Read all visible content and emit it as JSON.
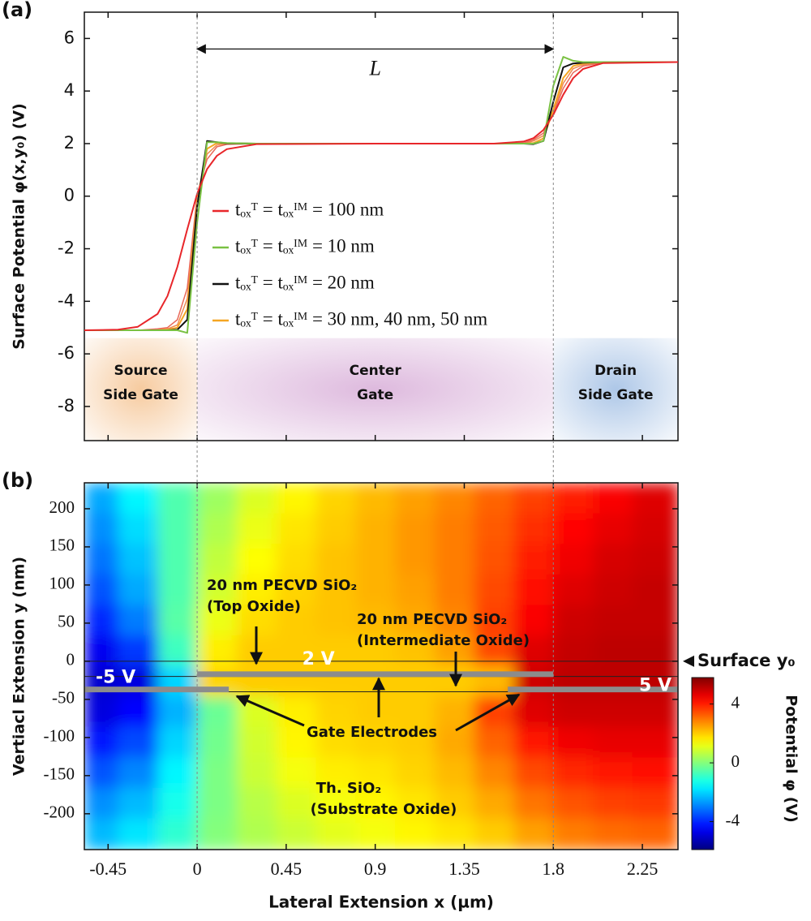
{
  "chart_data": [
    {
      "type": "line",
      "panel_label": "(a)",
      "ylabel": "Surface Potential φ(x,y₀) (V)",
      "x": [
        -0.57,
        -0.4,
        -0.3,
        -0.2,
        -0.15,
        -0.1,
        -0.05,
        0,
        0.05,
        0.1,
        0.15,
        0.3,
        0.9,
        1.5,
        1.65,
        1.7,
        1.75,
        1.8,
        1.85,
        1.9,
        1.95,
        2.05,
        2.43
      ],
      "xlim": [
        -0.57,
        2.43
      ],
      "xticks": [
        -0.45,
        0,
        0.45,
        0.9,
        1.35,
        1.8,
        2.25
      ],
      "ylim": [
        -9.3,
        7
      ],
      "yticks": [
        -8,
        -6,
        -4,
        -2,
        0,
        2,
        4,
        6
      ],
      "series": [
        {
          "name": "tₒₓᵀ = tₒₓᴵᴹ = 100 nm",
          "color": "#e8262a",
          "values": [
            -5.1,
            -5.08,
            -4.97,
            -4.48,
            -3.8,
            -2.69,
            -1.26,
            0.09,
            1.03,
            1.54,
            1.79,
            1.98,
            2,
            2,
            2.08,
            2.21,
            2.52,
            3.1,
            3.86,
            4.49,
            4.84,
            5.06,
            5.1
          ]
        },
        {
          "name": "tₒₓᵀ = tₒₓᴵᴹ = 10 nm",
          "color": "#7ac143",
          "values": [
            -5.1,
            -5.1,
            -5.1,
            -5.1,
            -5.1,
            -5.1,
            -5.2,
            -1,
            2.05,
            2.05,
            2.02,
            2,
            2,
            2,
            2,
            2,
            2.1,
            4.2,
            5.3,
            5.15,
            5.1,
            5.1,
            5.1
          ]
        },
        {
          "name": "tₒₓᵀ = tₒₓᴵᴹ = 20 nm",
          "color": "#111111",
          "values": [
            -5.1,
            -5.1,
            -5.1,
            -5.1,
            -5.1,
            -5.08,
            -4.7,
            -0.4,
            2.1,
            2.05,
            2.01,
            2,
            2,
            2,
            2,
            1.98,
            2.1,
            3.6,
            4.9,
            5.05,
            5.08,
            5.1,
            5.1
          ]
        },
        {
          "name": "tₒₓᵀ = tₒₓᴵᴹ = 30 nm, 40 nm, 50 nm",
          "color": "#f5a623",
          "values": [
            -5.1,
            -5.1,
            -5.1,
            -5.1,
            -5.08,
            -5,
            -4.3,
            -0.2,
            1.8,
            2.02,
            2.01,
            2,
            2,
            2,
            2,
            2.02,
            2.2,
            3.3,
            4.5,
            4.95,
            5.05,
            5.1,
            5.1
          ]
        },
        {
          "color": "#ef8a52",
          "values": [
            -5.1,
            -5.1,
            -5.1,
            -5.08,
            -5.05,
            -4.9,
            -3.9,
            0,
            1.6,
            1.95,
            2,
            2,
            2,
            2,
            2,
            2.1,
            2.3,
            3.2,
            4.3,
            4.85,
            5,
            5.1,
            5.1
          ]
        },
        {
          "color": "#e9695a",
          "values": [
            -5.1,
            -5.1,
            -5.1,
            -5.05,
            -5,
            -4.7,
            -3.5,
            0.05,
            1.4,
            1.88,
            1.97,
            2,
            2,
            2,
            2.02,
            2.15,
            2.4,
            3.15,
            4.1,
            4.7,
            4.95,
            5.08,
            5.1
          ]
        }
      ],
      "legend": "center",
      "gate_edges": [
        0,
        1.8
      ],
      "dimension": {
        "label": "L",
        "y": 5.6
      },
      "regions": [
        {
          "label": [
            "Source",
            "Side Gate"
          ],
          "x": [
            -0.57,
            0
          ],
          "y": [
            -9.3,
            -5.4
          ],
          "color": "#f6c89a"
        },
        {
          "label": [
            "Center",
            "Gate"
          ],
          "x": [
            0,
            1.8
          ],
          "y": [
            -9.3,
            -5.4
          ],
          "color": "#dcb6dc"
        },
        {
          "label": [
            "Drain",
            "Side Gate"
          ],
          "x": [
            1.8,
            2.43
          ],
          "y": [
            -9.3,
            -5.4
          ],
          "color": "#a9c4e6"
        }
      ]
    },
    {
      "type": "heatmap",
      "panel_label": "(b)",
      "xlabel": "Lateral Extension x (µm)",
      "ylabel": "Vertiacl Extension y (nm)",
      "xlim": [
        -0.57,
        2.43
      ],
      "xticks": [
        -0.45,
        0,
        0.45,
        0.9,
        1.35,
        1.8,
        2.25
      ],
      "ylim": [
        -247,
        234
      ],
      "yticks": [
        -200,
        -150,
        -100,
        -50,
        0,
        50,
        100,
        150,
        200
      ],
      "x": [
        -0.5,
        -0.3,
        -0.1,
        0.1,
        0.3,
        0.5,
        0.7,
        0.9,
        1.1,
        1.3,
        1.5,
        1.7,
        1.9,
        2.1,
        2.3
      ],
      "y": [
        214,
        174,
        134,
        94,
        54,
        14,
        -26,
        -66,
        -106,
        -146,
        -186,
        -226
      ],
      "z": [
        [
          -2.5,
          -1.6,
          -0.6,
          0.3,
          1.0,
          1.5,
          1.9,
          2.2,
          2.5,
          2.8,
          3.2,
          3.6,
          4.0,
          4.4,
          4.7
        ],
        [
          -2.8,
          -1.9,
          -0.6,
          0.5,
          1.2,
          1.7,
          2.0,
          2.3,
          2.6,
          2.9,
          3.3,
          3.8,
          4.3,
          4.6,
          4.8
        ],
        [
          -3.1,
          -2.2,
          -0.6,
          0.7,
          1.4,
          1.8,
          2.1,
          2.3,
          2.6,
          2.9,
          3.4,
          4.0,
          4.5,
          4.8,
          4.9
        ],
        [
          -3.5,
          -2.5,
          -0.6,
          0.9,
          1.6,
          1.9,
          2.1,
          2.3,
          2.5,
          2.9,
          3.5,
          4.2,
          4.7,
          4.9,
          5.0
        ],
        [
          -4.0,
          -3.0,
          -0.5,
          1.2,
          1.8,
          2.0,
          2.1,
          2.2,
          2.4,
          2.8,
          3.6,
          4.4,
          4.9,
          5.0,
          5.0
        ],
        [
          -4.6,
          -3.8,
          -0.8,
          1.6,
          2.0,
          2.0,
          2.0,
          2.0,
          2.1,
          2.5,
          3.5,
          4.7,
          5.0,
          5.1,
          5.1
        ],
        [
          -5.0,
          -4.8,
          -2.0,
          1.9,
          2.0,
          2.0,
          2.0,
          2.0,
          2.0,
          2.0,
          2.2,
          4.9,
          5.1,
          5.1,
          5.1
        ],
        [
          -4.8,
          -4.4,
          -2.4,
          -0.3,
          1.0,
          1.6,
          1.9,
          2.0,
          2.0,
          2.3,
          3.6,
          4.7,
          4.9,
          4.9,
          4.9
        ],
        [
          -4.2,
          -3.6,
          -2.0,
          -0.2,
          0.9,
          1.5,
          1.8,
          1.9,
          2.0,
          2.4,
          3.2,
          4.1,
          4.5,
          4.6,
          4.6
        ],
        [
          -3.5,
          -2.9,
          -1.6,
          -0.1,
          0.8,
          1.3,
          1.6,
          1.7,
          1.9,
          2.2,
          2.8,
          3.5,
          3.9,
          4.1,
          4.2
        ],
        [
          -2.8,
          -2.3,
          -1.3,
          -0.1,
          0.6,
          1.0,
          1.3,
          1.5,
          1.7,
          2.0,
          2.4,
          3.0,
          3.4,
          3.6,
          3.7
        ],
        [
          -2.3,
          -1.8,
          -1.0,
          0.0,
          0.5,
          0.8,
          1.1,
          1.3,
          1.5,
          1.7,
          2.0,
          2.5,
          2.9,
          3.1,
          3.2
        ]
      ],
      "colormap": "jet",
      "zlim": [
        -5.9,
        5.8
      ],
      "zticks": [
        -4,
        0,
        4
      ],
      "colorbar_label": "Potential φ (V)",
      "interfaces": [
        0,
        -20,
        -40
      ],
      "surface_label": "Surface y₀",
      "electrodes": [
        {
          "label": "-5 V",
          "x": [
            -0.57,
            0.16
          ],
          "y": -37
        },
        {
          "label": "2 V",
          "x": [
            0,
            1.8
          ],
          "y": -17
        },
        {
          "label": "5 V",
          "x": [
            1.57,
            2.43
          ],
          "y": -37
        }
      ],
      "annotations": [
        [
          "20 nm PECVD SiO₂",
          "(Top Oxide)"
        ],
        [
          "20 nm PECVD SiO₂",
          "(Intermediate Oxide)"
        ],
        [
          "Gate Electrodes"
        ],
        [
          "Th. SiO₂",
          "(Substrate Oxide)"
        ]
      ]
    }
  ]
}
